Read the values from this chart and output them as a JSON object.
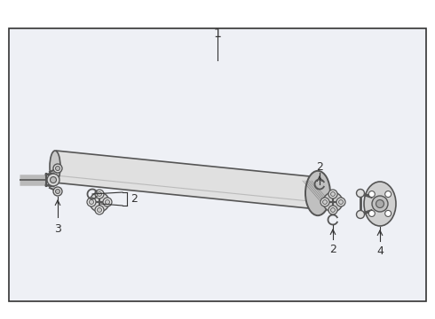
{
  "bg_color": "#ffffff",
  "border_color": "#333333",
  "line_color": "#555555",
  "dark_color": "#333333",
  "shaft_color": "#e8e8e8",
  "joint_color": "#d0d0d0",
  "label_1": "1",
  "label_2": "2",
  "label_3": "3",
  "label_4": "4",
  "font_size_label": 9,
  "fig_width": 4.9,
  "fig_height": 3.6,
  "dpi": 100
}
